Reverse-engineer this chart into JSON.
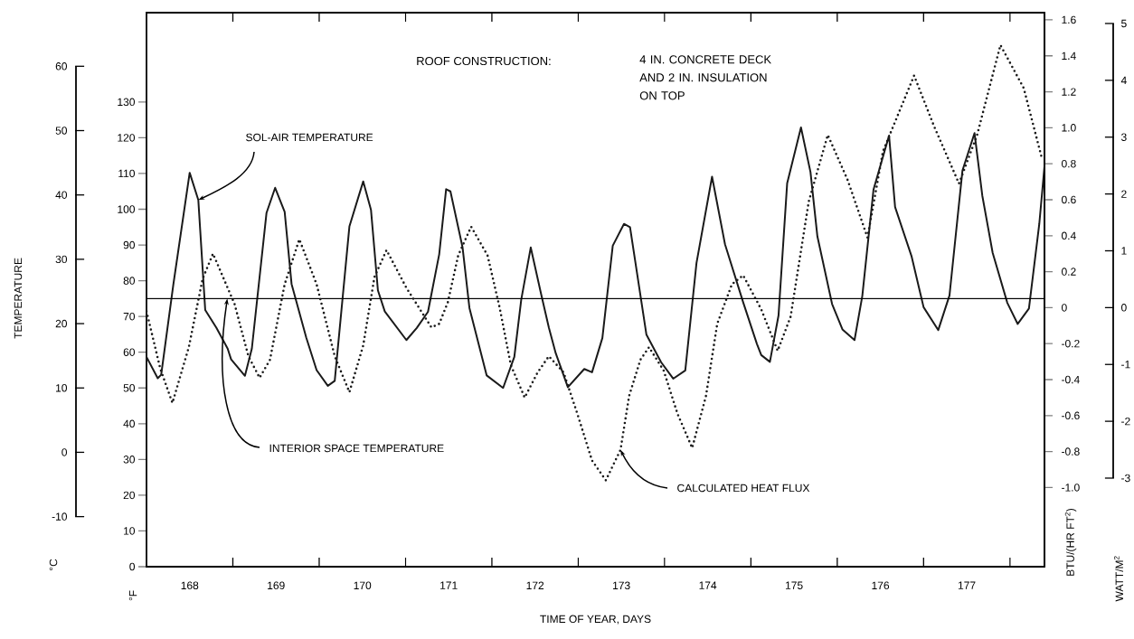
{
  "chart_data": {
    "type": "line",
    "xlabel": "TIME OF YEAR, DAYS",
    "ylabel": "°F",
    "y2label": "BTU/(HR FT$^{2}$)",
    "y3label": "°C",
    "annotations": [
      "TEMPERATURE",
      "ROOF CONSTRUCTION:",
      "4 IN. CONCRETE DECK AND 2 IN. INSULATION ON TOP",
      "WATT/M$^{2}$",
      "5",
      "4",
      "3",
      "2",
      "1",
      "0",
      "-1",
      "-2",
      "-3"
    ],
    "xlim": [
      168,
      178.4
    ],
    "xticks": [
      {
        "value": 168.5,
        "label": "168"
      },
      {
        "value": 169,
        "label": null
      },
      {
        "value": 169.5,
        "label": "169"
      },
      {
        "value": 170,
        "label": null
      },
      {
        "value": 170.5,
        "label": "170"
      },
      {
        "value": 171,
        "label": null
      },
      {
        "value": 171.5,
        "label": "171"
      },
      {
        "value": 172,
        "label": null
      },
      {
        "value": 172.5,
        "label": "172"
      },
      {
        "value": 173,
        "label": null
      },
      {
        "value": 173.5,
        "label": "173"
      },
      {
        "value": 174,
        "label": null
      },
      {
        "value": 174.5,
        "label": "174"
      },
      {
        "value": 175,
        "label": null
      },
      {
        "value": 175.5,
        "label": "175"
      },
      {
        "value": 176,
        "label": null
      },
      {
        "value": 176.5,
        "label": "176"
      },
      {
        "value": 177,
        "label": null
      },
      {
        "value": 177.5,
        "label": "177"
      },
      {
        "value": 178,
        "label": null
      }
    ],
    "ylim": [
      0,
      155
    ],
    "yticks": [
      0,
      10,
      20,
      30,
      40,
      50,
      60,
      70,
      80,
      90,
      100,
      110,
      120,
      130
    ],
    "y2lim": [
      -1.44,
      1.64
    ],
    "y2ticks": [
      {
        "value": -1,
        "label": "-1.0"
      },
      -0.8,
      -0.6,
      -0.4,
      -0.2,
      0,
      0.2,
      0.4,
      0.6,
      0.8,
      {
        "value": 1,
        "label": "1.0"
      },
      1.2,
      1.4,
      1.6
    ],
    "y3lim": [
      -10,
      60
    ],
    "y3ticks": [
      -10,
      0,
      10,
      20,
      30,
      40,
      50,
      60
    ],
    "ref_lines": [
      {
        "axis": "y",
        "value": 75,
        "label": "INTERIOR SPACE TEMPERATURE"
      }
    ],
    "series": [
      {
        "name": "SOL-AIR TEMPERATURE",
        "color": "#1a1a1a",
        "line_style": "solid",
        "x": [
          168.0,
          168.13,
          168.17,
          168.31,
          168.5,
          168.6,
          168.68,
          168.81,
          168.94,
          168.98,
          169.14,
          169.22,
          169.39,
          169.49,
          169.6,
          169.68,
          169.85,
          169.97,
          170.1,
          170.18,
          170.35,
          170.51,
          170.6,
          170.68,
          170.76,
          171.01,
          171.13,
          171.26,
          171.39,
          171.47,
          171.52,
          171.66,
          171.74,
          171.94,
          172.13,
          172.26,
          172.34,
          172.45,
          172.57,
          172.66,
          172.74,
          172.88,
          173.07,
          173.16,
          173.28,
          173.4,
          173.53,
          173.6,
          173.79,
          173.96,
          174.1,
          174.24,
          174.37,
          174.55,
          174.7,
          174.91,
          175.07,
          175.12,
          175.22,
          175.32,
          175.42,
          175.58,
          175.69,
          175.77,
          175.94,
          176.06,
          176.2,
          176.29,
          176.42,
          176.6,
          176.67,
          176.86,
          177.0,
          177.17,
          177.3,
          177.45,
          177.59,
          177.68,
          177.8,
          177.97,
          178.09,
          178.22,
          178.34,
          178.4
        ],
        "values": [
          58.7,
          52.7,
          53.7,
          78.8,
          110.2,
          102.6,
          71.8,
          66.8,
          61.0,
          58.0,
          53.4,
          61.0,
          99.0,
          106.0,
          99.3,
          79.1,
          64.1,
          55.0,
          50.6,
          52.0,
          95.2,
          107.8,
          99.8,
          77.3,
          71.4,
          63.4,
          66.8,
          71.3,
          87.4,
          105.6,
          105.0,
          89.4,
          72.4,
          53.5,
          50.0,
          58.7,
          74.7,
          89.3,
          76.3,
          66.9,
          59.7,
          50.2,
          55.3,
          54.4,
          64.0,
          89.8,
          95.9,
          95.0,
          64.9,
          57.2,
          52.6,
          54.9,
          85.0,
          109.1,
          90.2,
          74.0,
          62.3,
          59.2,
          57.3,
          70.3,
          107.3,
          122.9,
          110.4,
          92.4,
          73.5,
          66.4,
          63.4,
          75.7,
          105.5,
          120.6,
          100.6,
          86.9,
          72.6,
          66.2,
          75.9,
          110.8,
          121.3,
          103.8,
          87.8,
          73.8,
          67.9,
          72.2,
          95.9,
          112.0
        ]
      },
      {
        "name": "CALCULATED HEAT FLUX",
        "color": "#1a1a1a",
        "line_style": "dotted",
        "axis": "y2",
        "x": [
          168.0,
          168.16,
          168.3,
          168.49,
          168.65,
          168.77,
          169.02,
          169.18,
          169.31,
          169.43,
          169.6,
          169.77,
          169.97,
          170.18,
          170.35,
          170.51,
          170.64,
          170.78,
          171.01,
          171.3,
          171.39,
          171.49,
          171.61,
          171.76,
          171.95,
          172.09,
          172.22,
          172.38,
          172.53,
          172.66,
          172.83,
          172.99,
          173.16,
          173.32,
          173.49,
          173.59,
          173.72,
          173.82,
          173.99,
          174.15,
          174.32,
          174.48,
          174.61,
          174.78,
          174.91,
          175.12,
          175.31,
          175.46,
          175.67,
          175.89,
          176.12,
          176.35,
          176.53,
          176.89,
          177.12,
          177.41,
          177.62,
          177.89,
          178.16,
          178.37
        ],
        "values": [
          -0.02,
          -0.34,
          -0.53,
          -0.22,
          0.16,
          0.3,
          0.02,
          -0.27,
          -0.39,
          -0.29,
          0.13,
          0.38,
          0.13,
          -0.27,
          -0.47,
          -0.21,
          0.17,
          0.32,
          0.11,
          -0.11,
          -0.09,
          0.03,
          0.29,
          0.45,
          0.29,
          0.0,
          -0.32,
          -0.5,
          -0.36,
          -0.27,
          -0.36,
          -0.59,
          -0.85,
          -0.96,
          -0.79,
          -0.49,
          -0.29,
          -0.22,
          -0.35,
          -0.59,
          -0.78,
          -0.49,
          -0.09,
          0.13,
          0.18,
          -0.01,
          -0.24,
          -0.05,
          0.59,
          0.96,
          0.71,
          0.39,
          0.87,
          1.29,
          1.01,
          0.69,
          0.96,
          1.46,
          1.22,
          0.83
        ]
      }
    ]
  }
}
